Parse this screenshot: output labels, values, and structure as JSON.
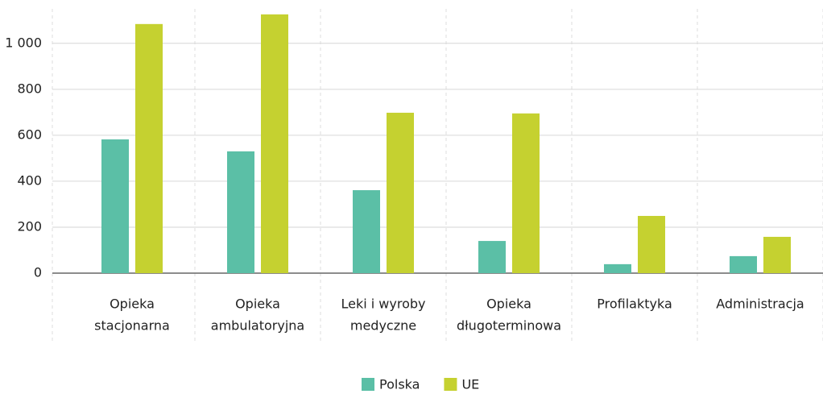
{
  "chart_data": {
    "type": "bar",
    "categories": [
      [
        "Opieka",
        "stacjonarna"
      ],
      [
        "Opieka",
        "ambulatoryjna"
      ],
      [
        "Leki i wyroby",
        "medyczne"
      ],
      [
        "Opieka",
        "długoterminowa"
      ],
      [
        "Profilaktyka"
      ],
      [
        "Administracja"
      ]
    ],
    "series": [
      {
        "name": "Polska",
        "color": "#5bbfa6",
        "values": [
          582,
          530,
          361,
          140,
          39,
          74
        ]
      },
      {
        "name": "UE",
        "color": "#c5d130",
        "values": [
          1084,
          1126,
          698,
          695,
          249,
          158
        ]
      }
    ],
    "ylim": [
      0,
      1150
    ],
    "yticks": [
      0,
      200,
      400,
      600,
      800,
      {
        "value": 1000,
        "label": "1 000"
      }
    ],
    "grid": true,
    "legend": "bottom"
  }
}
